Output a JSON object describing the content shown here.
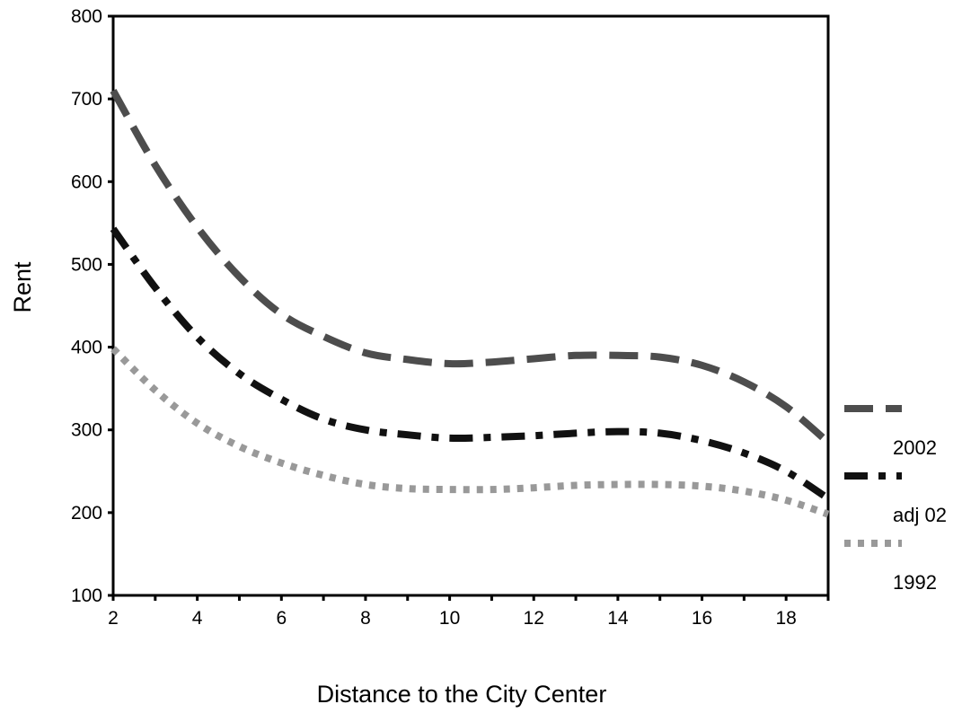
{
  "chart_data": {
    "type": "line",
    "title": "",
    "xlabel": "Distance to the City Center",
    "ylabel": "Rent",
    "xlim": [
      2,
      19
    ],
    "ylim": [
      100,
      800
    ],
    "x_ticks": [
      2,
      4,
      6,
      8,
      10,
      12,
      14,
      16,
      18
    ],
    "y_ticks": [
      100,
      200,
      300,
      400,
      500,
      600,
      700,
      800
    ],
    "grid": false,
    "legend_position": "right",
    "series": [
      {
        "name": "2002",
        "color": "#4d4d4d",
        "dash": "long-dash",
        "x": [
          2,
          3,
          4,
          5,
          6,
          7,
          8,
          9,
          10,
          11,
          12,
          13,
          14,
          15,
          16,
          17,
          18,
          19
        ],
        "y": [
          710,
          620,
          545,
          485,
          440,
          413,
          393,
          385,
          380,
          382,
          386,
          390,
          390,
          388,
          378,
          358,
          328,
          285
        ]
      },
      {
        "name": "adj 02",
        "color": "#111111",
        "dash": "dash-dot",
        "x": [
          2,
          3,
          4,
          5,
          6,
          7,
          8,
          9,
          10,
          11,
          12,
          13,
          14,
          15,
          16,
          17,
          18,
          19
        ],
        "y": [
          543,
          472,
          412,
          368,
          337,
          313,
          300,
          294,
          290,
          291,
          293,
          296,
          298,
          296,
          287,
          272,
          250,
          217
        ]
      },
      {
        "name": "1992",
        "color": "#999999",
        "dash": "dotted",
        "x": [
          2,
          3,
          4,
          5,
          6,
          7,
          8,
          9,
          10,
          11,
          12,
          13,
          14,
          15,
          16,
          17,
          18,
          19
        ],
        "y": [
          398,
          348,
          308,
          280,
          260,
          245,
          234,
          229,
          228,
          228,
          230,
          233,
          234,
          234,
          232,
          226,
          215,
          198
        ]
      }
    ]
  }
}
